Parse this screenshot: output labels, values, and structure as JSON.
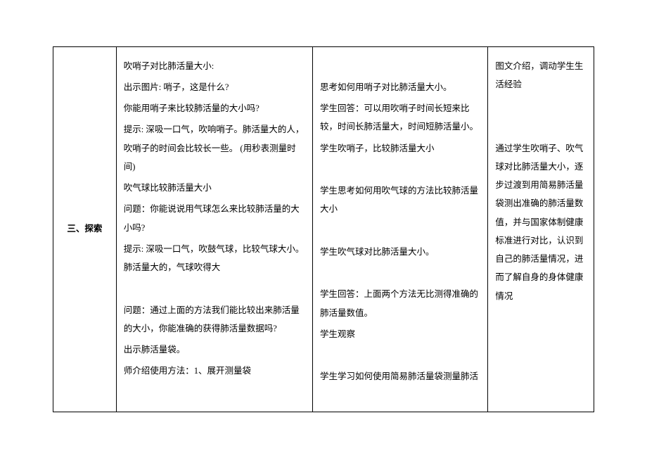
{
  "row_header": "三、探索",
  "col1": [
    "吹哨子对比肺活量大小:",
    "出示图片: 哨子，这是什么?",
    "你能用哨子来比较肺活量的大小吗?",
    "提示: 深吸一口气，吹响哨子。肺活量大的人，吹哨子的时间会比较长一些。  (用秒表测量时间)",
    "吹气球比较肺活量大小",
    "问题：你能说说用气球怎么来比较肺活量的大小吗?",
    "提示: 深吸一口气，吹鼓气球，比较气球大小。肺活量大的，气球吹得大",
    "",
    "问题：通过上面的方法我们能比较出来肺活量的大小，你能准确的获得肺活量数据吗?",
    "出示肺活量袋。",
    "师介绍使用方法：1、展开测量袋"
  ],
  "col2": [
    "",
    "思考如何用哨子对比肺活量大小。",
    "学生回答：可以用吹哨子时间长短来比较，时间长肺活量大，时间短肺活量小。",
    "学生吹哨子，比较肺活量大小",
    "",
    "学生思考如何用吹气球的方法比较肺活量大小",
    "",
    "学生吹气球对比肺活量大小。",
    "",
    "学生回答：上面两个方法无比测得准确的肺活量数值。",
    "学生观察",
    "",
    "学生学习如何使用简易肺活量袋测量肺活"
  ],
  "col3": [
    "图文介绍，调动学生生活经验",
    "",
    "",
    "通过学生吹哨子、吹气球对比肺活量大小，逐步过渡到用简易肺活量袋测出准确的肺活量数值，并与国家体制健康标准进行对比，认识到自己的肺活量情况，进而了解自身的身体健康情况"
  ]
}
